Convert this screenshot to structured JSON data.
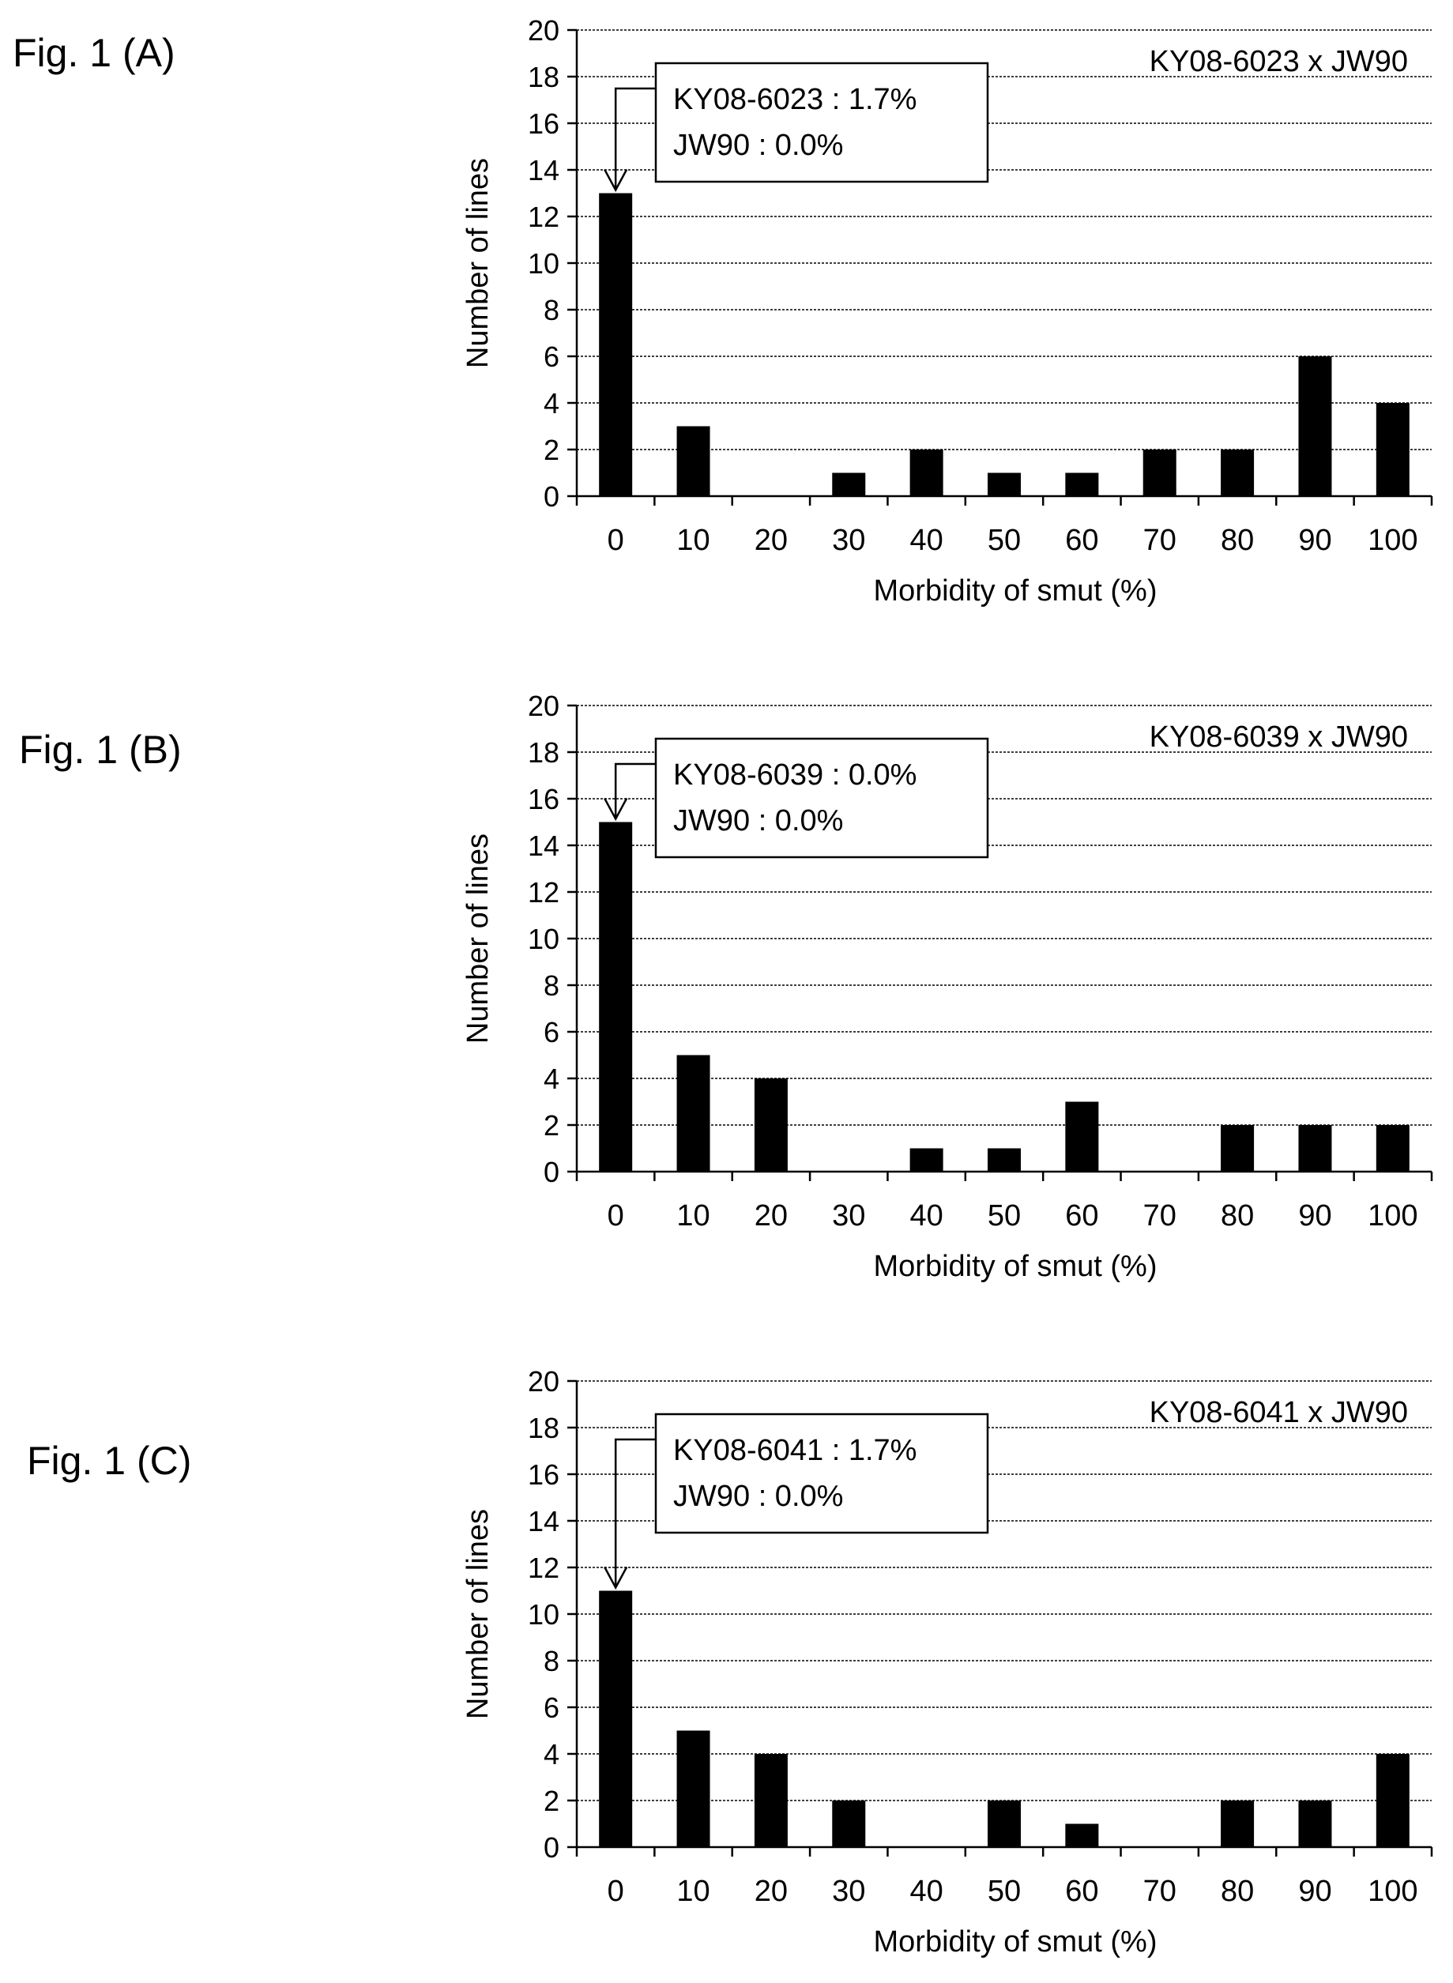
{
  "figure_labels": [
    "Fig. 1 (A)",
    "Fig. 1 (B)",
    "Fig. 1 (C)"
  ],
  "chart_data": [
    {
      "type": "bar",
      "title": "KY08-6023 x JW90",
      "xlabel": "Morbidity of smut (%)",
      "ylabel": "Number of lines",
      "categories": [
        "0",
        "10",
        "20",
        "30",
        "40",
        "50",
        "60",
        "70",
        "80",
        "90",
        "100"
      ],
      "values": [
        13,
        3,
        0,
        1,
        2,
        1,
        1,
        2,
        2,
        6,
        4
      ],
      "ylim": [
        0,
        20
      ],
      "yticks": [
        0,
        2,
        4,
        6,
        8,
        10,
        12,
        14,
        16,
        18,
        20
      ],
      "grid": "horizontal dashed",
      "annotation": [
        "KY08-6023 : 1.7%",
        "JW90 : 0.0%"
      ],
      "annotation_target": "0"
    },
    {
      "type": "bar",
      "title": "KY08-6039 x JW90",
      "xlabel": "Morbidity of smut (%)",
      "ylabel": "Number of lines",
      "categories": [
        "0",
        "10",
        "20",
        "30",
        "40",
        "50",
        "60",
        "70",
        "80",
        "90",
        "100"
      ],
      "values": [
        15,
        5,
        4,
        0,
        1,
        1,
        3,
        0,
        2,
        2,
        2
      ],
      "ylim": [
        0,
        20
      ],
      "yticks": [
        0,
        2,
        4,
        6,
        8,
        10,
        12,
        14,
        16,
        18,
        20
      ],
      "grid": "horizontal dashed",
      "annotation": [
        "KY08-6039 : 0.0%",
        "JW90 : 0.0%"
      ],
      "annotation_target": "0"
    },
    {
      "type": "bar",
      "title": "KY08-6041 x JW90",
      "xlabel": "Morbidity of smut (%)",
      "ylabel": "Number of lines",
      "categories": [
        "0",
        "10",
        "20",
        "30",
        "40",
        "50",
        "60",
        "70",
        "80",
        "90",
        "100"
      ],
      "values": [
        11,
        5,
        4,
        2,
        0,
        2,
        1,
        0,
        2,
        2,
        4
      ],
      "ylim": [
        0,
        20
      ],
      "yticks": [
        0,
        2,
        4,
        6,
        8,
        10,
        12,
        14,
        16,
        18,
        20
      ],
      "grid": "horizontal dashed",
      "annotation": [
        "KY08-6041 : 1.7%",
        "JW90 : 0.0%"
      ],
      "annotation_target": "0"
    }
  ]
}
